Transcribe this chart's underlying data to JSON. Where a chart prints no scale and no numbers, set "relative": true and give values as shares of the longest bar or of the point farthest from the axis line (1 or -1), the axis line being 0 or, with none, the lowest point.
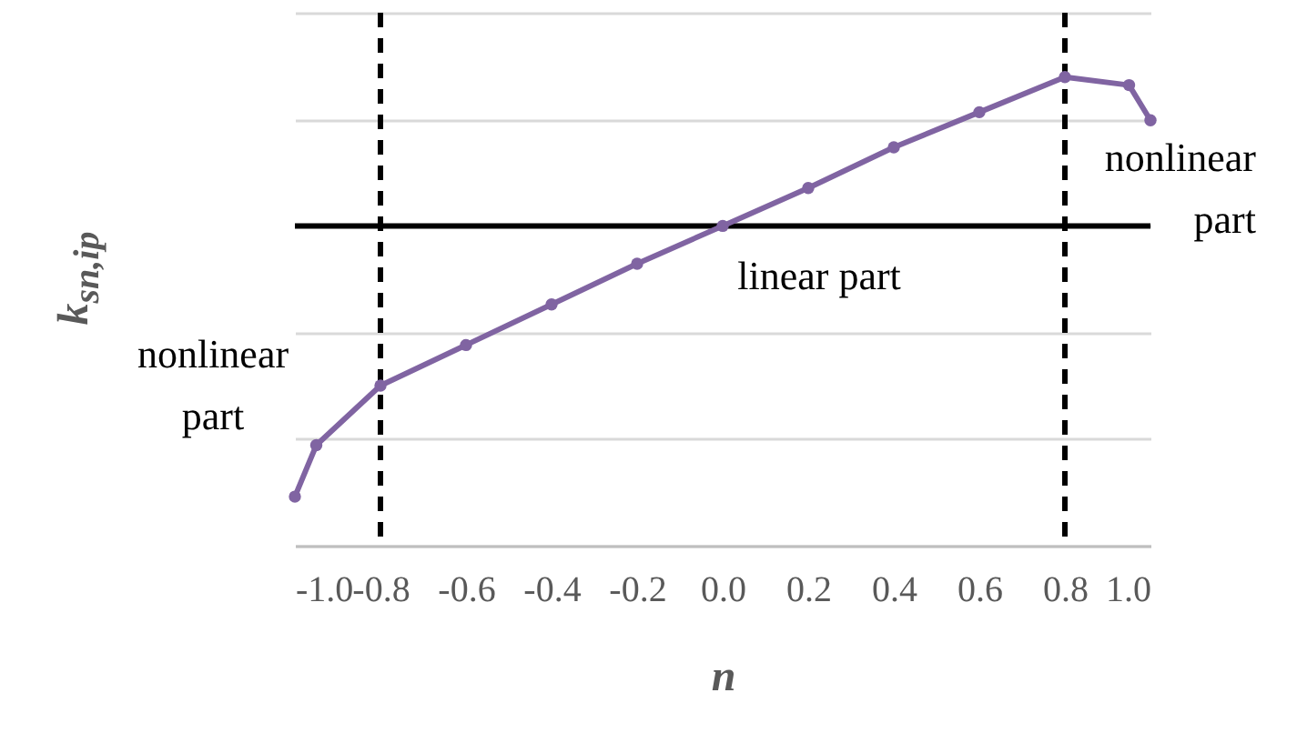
{
  "chart_data": {
    "type": "line",
    "xlabel": "n",
    "ylabel": "k$_{sn,ip}$",
    "relative": true,
    "x": [
      -1.0,
      -0.95,
      -0.8,
      -0.6,
      -0.4,
      -0.2,
      0.0,
      0.2,
      0.4,
      0.6,
      0.8,
      0.95,
      1.0
    ],
    "series": [
      {
        "color": "#8064a2",
        "values": [
          -1,
          -0.81,
          -0.59,
          -0.44,
          -0.29,
          -0.14,
          0,
          0.14,
          0.29,
          0.42,
          0.55,
          0.52,
          0.39
        ]
      }
    ],
    "xlim": [
      -1,
      1
    ],
    "xticks": [
      {
        "value": -1,
        "label": "-1.0"
      },
      {
        "value": -0.8,
        "label": "-0.8"
      },
      {
        "value": -0.6,
        "label": "-0.6"
      },
      {
        "value": -0.4,
        "label": "-0.4"
      },
      {
        "value": -0.2,
        "label": "-0.2"
      },
      {
        "value": 0,
        "label": "0.0"
      },
      {
        "value": 0.2,
        "label": "0.2"
      },
      {
        "value": 0.4,
        "label": "0.4"
      },
      {
        "value": 0.6,
        "label": "0.6"
      },
      {
        "value": 0.8,
        "label": "0.8"
      },
      {
        "value": 1,
        "label": "1.0"
      }
    ],
    "ref_lines": [
      {
        "axis": "x",
        "value": -0.8,
        "color": "#000000",
        "line_style": "dashed"
      },
      {
        "axis": "x",
        "value": 0.8,
        "color": "#000000",
        "line_style": "dashed"
      },
      {
        "axis": "y",
        "value": 0,
        "color": "#000000",
        "line_style": "solid"
      }
    ],
    "annotations": [
      "nonlinear part",
      "linear part",
      "nonlinear part"
    ],
    "grid": "y",
    "marker": "circle",
    "line_style": "solid"
  }
}
